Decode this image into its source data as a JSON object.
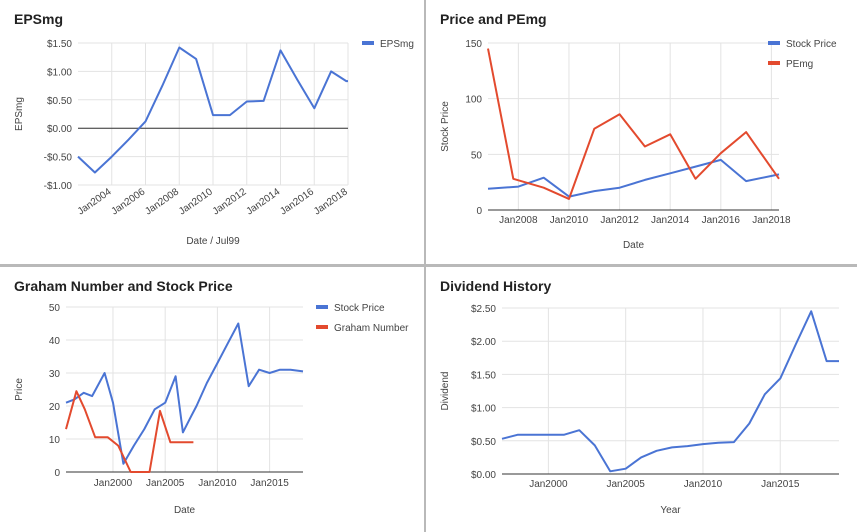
{
  "colors": {
    "blue": "#4a74d4",
    "red": "#e34a2e",
    "grid": "#e3e3e3",
    "axis": "#333333",
    "text": "#444444"
  },
  "panels": {
    "eps": {
      "title": "EPSmg"
    },
    "pe": {
      "title": "Price and PEmg"
    },
    "graham": {
      "title": "Graham Number and Stock Price"
    },
    "div": {
      "title": "Dividend History"
    }
  },
  "chart_data": [
    {
      "id": "eps",
      "type": "line",
      "title": "EPSmg",
      "xlabel": "Date / Jul99",
      "ylabel": "EPSmg",
      "xlim": [
        2002,
        2018
      ],
      "ylim": [
        -1.0,
        1.5
      ],
      "xticks": [
        2004,
        2006,
        2008,
        2010,
        2012,
        2014,
        2016,
        2018
      ],
      "xtick_labels": [
        "Jan2004",
        "Jan2006",
        "Jan2008",
        "Jan2010",
        "Jan2012",
        "Jan2014",
        "Jan2016",
        "Jan2018"
      ],
      "yticks": [
        -1.0,
        -0.5,
        0,
        0.5,
        1.0,
        1.5
      ],
      "ytick_labels": [
        "-$1.00",
        "-$0.50",
        "$0.00",
        "$0.50",
        "$1.00",
        "$1.50"
      ],
      "zero_line": true,
      "legend_position": "top-right",
      "series": [
        {
          "name": "EPSmg",
          "color": "#4a74d4",
          "x": [
            2002,
            2003,
            2004,
            2005,
            2006,
            2007,
            2008,
            2009,
            2010,
            2011,
            2012,
            2013,
            2014,
            2015,
            2016,
            2017,
            2017.9,
            2018
          ],
          "y": [
            -0.5,
            -0.78,
            -0.5,
            -0.2,
            0.12,
            0.75,
            1.42,
            1.22,
            0.23,
            0.23,
            0.47,
            0.48,
            1.37,
            0.85,
            0.35,
            1.0,
            0.83,
            0.83
          ]
        }
      ]
    },
    {
      "id": "pe",
      "type": "line",
      "title": "Price and PEmg",
      "xlabel": "Date",
      "ylabel": "Stock Price",
      "xlim": [
        2006.8,
        2018.3
      ],
      "ylim": [
        0,
        150
      ],
      "xticks": [
        2008,
        2010,
        2012,
        2014,
        2016,
        2018
      ],
      "xtick_labels": [
        "Jan2008",
        "Jan2010",
        "Jan2012",
        "Jan2014",
        "Jan2016",
        "Jan2018"
      ],
      "yticks": [
        0,
        50,
        100,
        150
      ],
      "ytick_labels": [
        "0",
        "50",
        "100",
        "150"
      ],
      "legend_position": "top-right",
      "series": [
        {
          "name": "Stock Price",
          "color": "#4a74d4",
          "x": [
            2006.8,
            2008,
            2009,
            2010,
            2011,
            2012,
            2013,
            2014,
            2015,
            2016,
            2017,
            2018.3
          ],
          "y": [
            19,
            21,
            29,
            12,
            17,
            20,
            27,
            33,
            39,
            45,
            26,
            32
          ]
        },
        {
          "name": "PEmg",
          "color": "#e34a2e",
          "x": [
            2006.8,
            2007.8,
            2009,
            2010,
            2011,
            2012,
            2013,
            2014,
            2015,
            2016,
            2017,
            2018.3
          ],
          "y": [
            145,
            28,
            20,
            10,
            73,
            86,
            57,
            68,
            28,
            51,
            70,
            28
          ]
        }
      ]
    },
    {
      "id": "graham",
      "type": "line",
      "title": "Graham Number and Stock Price",
      "xlabel": "Date",
      "ylabel": "Price",
      "xlim": [
        1995.5,
        2018.2
      ],
      "ylim": [
        0,
        50
      ],
      "xticks": [
        2000,
        2005,
        2010,
        2015
      ],
      "xtick_labels": [
        "Jan2000",
        "Jan2005",
        "Jan2010",
        "Jan2015"
      ],
      "yticks": [
        0,
        10,
        20,
        30,
        40,
        50
      ],
      "ytick_labels": [
        "0",
        "10",
        "20",
        "30",
        "40",
        "50"
      ],
      "legend_position": "top-right",
      "series": [
        {
          "name": "Stock Price",
          "color": "#4a74d4",
          "x": [
            1995.5,
            1996.3,
            1997.2,
            1998,
            1999.2,
            2000,
            2001,
            2002,
            2003,
            2004,
            2005,
            2006,
            2006.7,
            2007.5,
            2008,
            2009,
            2010,
            2011,
            2012,
            2013,
            2014,
            2015,
            2016,
            2017,
            2018.2
          ],
          "y": [
            21,
            22,
            24,
            23,
            30,
            21,
            2.5,
            8,
            13,
            19,
            21,
            29,
            12,
            17,
            20,
            27,
            33,
            39,
            45,
            26,
            31,
            30,
            31,
            31,
            30.5
          ]
        },
        {
          "name": "Graham Number",
          "color": "#e34a2e",
          "x": [
            1995.5,
            1996.5,
            1997.3,
            1998.3,
            1999.5,
            2000.5,
            2001.7,
            2002.8,
            2003.5,
            2004.5,
            2005.5,
            2006.3,
            2007,
            2007.7
          ],
          "y": [
            13,
            24.5,
            19,
            10.5,
            10.5,
            8,
            0,
            0,
            0,
            18.5,
            9,
            9,
            9,
            9
          ]
        }
      ]
    },
    {
      "id": "div",
      "type": "line",
      "title": "Dividend History",
      "xlabel": "Year",
      "ylabel": "Dividend",
      "xlim": [
        1997,
        2018.8
      ],
      "ylim": [
        0,
        2.5
      ],
      "xticks": [
        2000,
        2005,
        2010,
        2015
      ],
      "xtick_labels": [
        "Jan2000",
        "Jan2005",
        "Jan2010",
        "Jan2015"
      ],
      "yticks": [
        0,
        0.5,
        1.0,
        1.5,
        2.0,
        2.5
      ],
      "ytick_labels": [
        "$0.00",
        "$0.50",
        "$1.00",
        "$1.50",
        "$2.00",
        "$2.50"
      ],
      "legend_position": "none",
      "series": [
        {
          "name": "",
          "color": "#4a74d4",
          "x": [
            1997,
            1998,
            1999,
            2000,
            2001,
            2002,
            2003,
            2004,
            2005,
            2006,
            2007,
            2008,
            2009,
            2010,
            2011,
            2012,
            2013,
            2014,
            2015,
            2016,
            2017,
            2018,
            2018.8
          ],
          "y": [
            0.53,
            0.59,
            0.59,
            0.59,
            0.59,
            0.66,
            0.43,
            0.04,
            0.08,
            0.25,
            0.35,
            0.4,
            0.42,
            0.45,
            0.47,
            0.48,
            0.76,
            1.2,
            1.44,
            1.95,
            2.45,
            1.7,
            1.7
          ]
        }
      ]
    }
  ]
}
